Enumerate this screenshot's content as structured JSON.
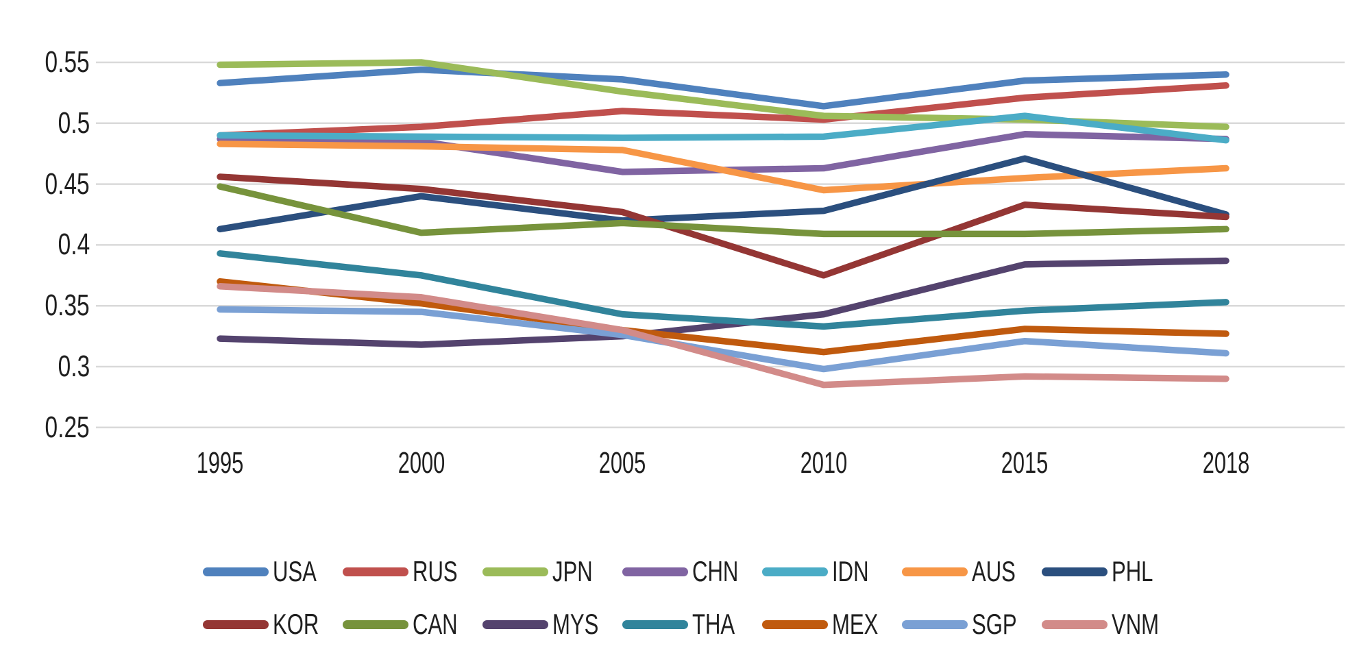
{
  "chart_data": {
    "type": "line",
    "title": "",
    "xlabel": "",
    "ylabel": "",
    "x_categories": [
      "1995",
      "2000",
      "2005",
      "2010",
      "2015",
      "2018"
    ],
    "y_tick_labels": [
      "0.55",
      "0.5",
      "0.45",
      "0.4",
      "0.35",
      "0.3",
      "0.25"
    ],
    "y_ticks": [
      0.55,
      0.5,
      0.45,
      0.4,
      0.35,
      0.3,
      0.25
    ],
    "ylim": [
      0.25,
      0.575
    ],
    "grid": "horizontal",
    "legend_position": "bottom",
    "legend_rows": [
      [
        "USA",
        "RUS",
        "JPN",
        "CHN",
        "IDN",
        "AUS",
        "PHL"
      ],
      [
        "KOR",
        "CAN",
        "MYS",
        "THA",
        "MEX",
        "SGP",
        "VNM"
      ]
    ],
    "series": [
      {
        "name": "USA",
        "color": "#4F81BD",
        "values": [
          0.533,
          0.544,
          0.536,
          0.514,
          0.535,
          0.54
        ]
      },
      {
        "name": "RUS",
        "color": "#C0504D",
        "values": [
          0.49,
          0.497,
          0.51,
          0.503,
          0.521,
          0.531
        ]
      },
      {
        "name": "JPN",
        "color": "#9BBB59",
        "values": [
          0.548,
          0.55,
          0.526,
          0.506,
          0.503,
          0.497
        ]
      },
      {
        "name": "CHN",
        "color": "#8064A2",
        "values": [
          0.487,
          0.485,
          0.46,
          0.463,
          0.491,
          0.487
        ]
      },
      {
        "name": "IDN",
        "color": "#4BACC6",
        "values": [
          0.49,
          0.489,
          0.488,
          0.489,
          0.506,
          0.486
        ]
      },
      {
        "name": "AUS",
        "color": "#F79646",
        "values": [
          0.483,
          0.481,
          0.478,
          0.445,
          0.455,
          0.463
        ]
      },
      {
        "name": "PHL",
        "color": "#2B4F7E",
        "values": [
          0.413,
          0.44,
          0.42,
          0.428,
          0.471,
          0.425
        ]
      },
      {
        "name": "KOR",
        "color": "#943634",
        "values": [
          0.456,
          0.446,
          0.427,
          0.375,
          0.433,
          0.423
        ]
      },
      {
        "name": "CAN",
        "color": "#77933C",
        "values": [
          0.448,
          0.41,
          0.418,
          0.409,
          0.409,
          0.413
        ]
      },
      {
        "name": "MYS",
        "color": "#54436E",
        "values": [
          0.323,
          0.318,
          0.325,
          0.343,
          0.384,
          0.387
        ]
      },
      {
        "name": "THA",
        "color": "#31849B",
        "values": [
          0.393,
          0.375,
          0.343,
          0.333,
          0.346,
          0.353
        ]
      },
      {
        "name": "MEX",
        "color": "#C05A0E",
        "values": [
          0.37,
          0.352,
          0.33,
          0.312,
          0.331,
          0.327
        ]
      },
      {
        "name": "SGP",
        "color": "#7AA0D4",
        "values": [
          0.347,
          0.345,
          0.326,
          0.298,
          0.321,
          0.311
        ]
      },
      {
        "name": "VNM",
        "color": "#D28B89",
        "values": [
          0.366,
          0.357,
          0.33,
          0.285,
          0.292,
          0.29
        ]
      }
    ]
  },
  "colors": {
    "background": "#FFFFFF",
    "gridline": "#D9D9D9",
    "axis_text": "#1F1F1F"
  }
}
